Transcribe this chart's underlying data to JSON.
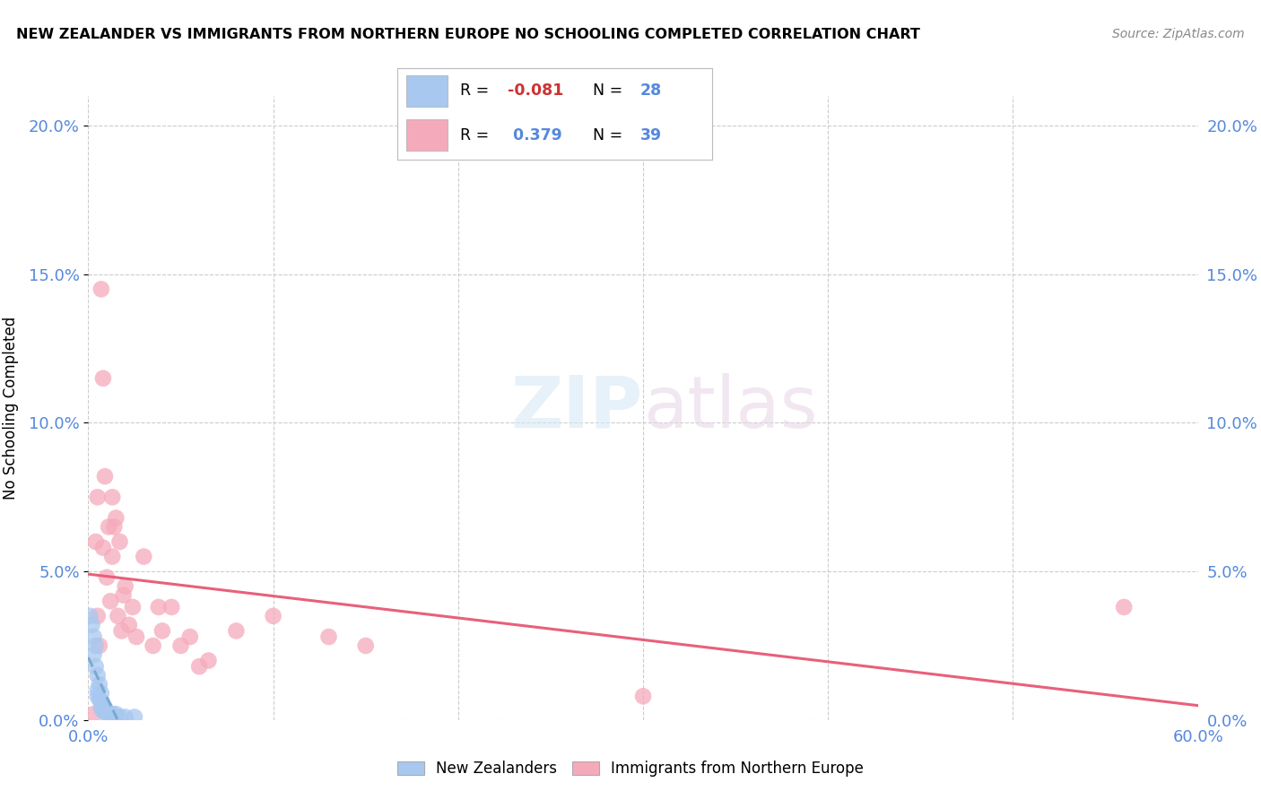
{
  "title": "NEW ZEALANDER VS IMMIGRANTS FROM NORTHERN EUROPE NO SCHOOLING COMPLETED CORRELATION CHART",
  "source": "Source: ZipAtlas.com",
  "ylabel": "No Schooling Completed",
  "xlim": [
    0.0,
    0.6
  ],
  "ylim": [
    0.0,
    0.21
  ],
  "yticks": [
    0.0,
    0.05,
    0.1,
    0.15,
    0.2
  ],
  "ytick_labels": [
    "0.0%",
    "5.0%",
    "10.0%",
    "15.0%",
    "20.0%"
  ],
  "xtick_labels_show": [
    "0.0%",
    "60.0%"
  ],
  "xticks_show": [
    0.0,
    0.6
  ],
  "blue_color": "#A8C8F0",
  "pink_color": "#F5AABB",
  "blue_line_color": "#7AAAD0",
  "pink_line_color": "#E8607A",
  "watermark_zip": "ZIP",
  "watermark_atlas": "atlas",
  "legend_label_blue": "New Zealanders",
  "legend_label_pink": "Immigrants from Northern Europe",
  "blue_scatter_x": [
    0.001,
    0.002,
    0.003,
    0.003,
    0.004,
    0.004,
    0.005,
    0.005,
    0.005,
    0.006,
    0.006,
    0.007,
    0.007,
    0.007,
    0.008,
    0.008,
    0.009,
    0.009,
    0.01,
    0.01,
    0.011,
    0.012,
    0.013,
    0.014,
    0.015,
    0.017,
    0.02,
    0.025
  ],
  "blue_scatter_y": [
    0.035,
    0.032,
    0.028,
    0.022,
    0.018,
    0.025,
    0.015,
    0.01,
    0.008,
    0.012,
    0.007,
    0.009,
    0.006,
    0.004,
    0.005,
    0.003,
    0.004,
    0.003,
    0.003,
    0.002,
    0.002,
    0.002,
    0.002,
    0.001,
    0.002,
    0.001,
    0.001,
    0.001
  ],
  "pink_scatter_x": [
    0.003,
    0.004,
    0.005,
    0.005,
    0.006,
    0.007,
    0.008,
    0.008,
    0.009,
    0.01,
    0.011,
    0.012,
    0.013,
    0.013,
    0.014,
    0.015,
    0.016,
    0.017,
    0.018,
    0.019,
    0.02,
    0.022,
    0.024,
    0.026,
    0.03,
    0.035,
    0.038,
    0.04,
    0.045,
    0.05,
    0.055,
    0.06,
    0.065,
    0.08,
    0.1,
    0.13,
    0.15,
    0.3,
    0.56
  ],
  "pink_scatter_y": [
    0.002,
    0.06,
    0.075,
    0.035,
    0.025,
    0.145,
    0.115,
    0.058,
    0.082,
    0.048,
    0.065,
    0.04,
    0.075,
    0.055,
    0.065,
    0.068,
    0.035,
    0.06,
    0.03,
    0.042,
    0.045,
    0.032,
    0.038,
    0.028,
    0.055,
    0.025,
    0.038,
    0.03,
    0.038,
    0.025,
    0.028,
    0.018,
    0.02,
    0.03,
    0.035,
    0.028,
    0.025,
    0.008,
    0.038
  ]
}
